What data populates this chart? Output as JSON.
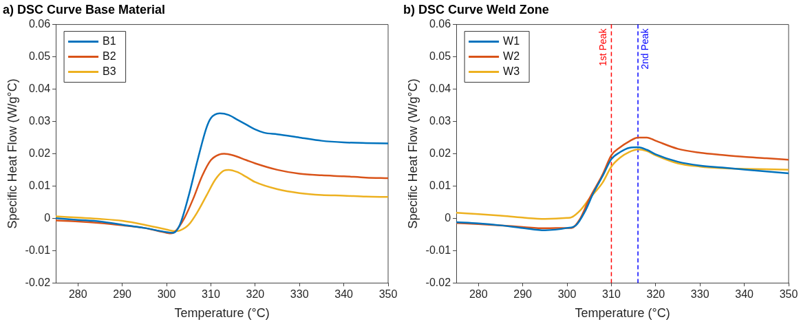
{
  "chart_data": [
    {
      "type": "line",
      "title": "a) DSC Curve Base Material",
      "xlabel": "Temperature (°C)",
      "ylabel": "Specific Heat Flow (W/g°C)",
      "xlim": [
        275,
        350
      ],
      "xticks": [
        280,
        290,
        300,
        310,
        320,
        330,
        340,
        350
      ],
      "ylim": [
        -0.02,
        0.06
      ],
      "yticks": [
        -0.02,
        -0.01,
        0,
        0.01,
        0.02,
        0.03,
        0.04,
        0.05,
        0.06
      ],
      "grid": false,
      "legend": "top left",
      "marker": "none",
      "series": [
        {
          "name": "B1",
          "color": "#0072bd",
          "x": [
            275,
            280,
            285,
            290,
            295,
            300,
            301.5,
            303,
            305,
            307,
            309,
            310,
            312,
            314,
            316,
            318,
            320,
            322,
            325,
            330,
            335,
            340,
            345,
            350
          ],
          "values": [
            0.0,
            -0.0005,
            -0.001,
            -0.002,
            -0.003,
            -0.0043,
            -0.0045,
            -0.002,
            0.007,
            0.018,
            0.028,
            0.031,
            0.0325,
            0.032,
            0.0305,
            0.029,
            0.0275,
            0.0265,
            0.026,
            0.025,
            0.024,
            0.0235,
            0.0233,
            0.0232
          ]
        },
        {
          "name": "B2",
          "color": "#d95319",
          "x": [
            275,
            280,
            285,
            290,
            295,
            300,
            301,
            302,
            304,
            306,
            308,
            310,
            312,
            313,
            315,
            318,
            320,
            325,
            330,
            335,
            340,
            345,
            350
          ],
          "values": [
            -0.0007,
            -0.001,
            -0.0015,
            -0.0022,
            -0.003,
            -0.0045,
            -0.0047,
            -0.004,
            0.0,
            0.006,
            0.013,
            0.018,
            0.0198,
            0.02,
            0.0195,
            0.018,
            0.017,
            0.015,
            0.0138,
            0.0133,
            0.013,
            0.0126,
            0.0124
          ]
        },
        {
          "name": "B3",
          "color": "#edb120",
          "x": [
            275,
            280,
            285,
            290,
            295,
            300,
            302,
            303,
            305,
            307,
            309,
            311,
            313,
            314,
            316,
            318,
            320,
            325,
            330,
            335,
            340,
            345,
            350
          ],
          "values": [
            0.0006,
            0.0002,
            -0.0002,
            -0.0008,
            -0.002,
            -0.0035,
            -0.004,
            -0.0038,
            -0.002,
            0.002,
            0.007,
            0.012,
            0.0148,
            0.015,
            0.0143,
            0.0128,
            0.0112,
            0.009,
            0.0078,
            0.0072,
            0.007,
            0.0067,
            0.0066
          ]
        }
      ]
    },
    {
      "type": "line",
      "title": "b) DSC Curve Weld Zone",
      "xlabel": "Temperature (°C)",
      "ylabel": "Specific Heat Flow (W/g°C)",
      "xlim": [
        275,
        350
      ],
      "xticks": [
        280,
        290,
        300,
        310,
        320,
        330,
        340,
        350
      ],
      "ylim": [
        -0.02,
        0.06
      ],
      "yticks": [
        -0.02,
        -0.01,
        0,
        0.01,
        0.02,
        0.03,
        0.04,
        0.05,
        0.06
      ],
      "grid": false,
      "legend": "top left",
      "marker": "none",
      "ref_lines": [
        {
          "axis": "x",
          "value": 310,
          "label": "1st Peak",
          "color": "#ff0000",
          "line_style": "dashed"
        },
        {
          "axis": "x",
          "value": 316,
          "label": "2nd Peak",
          "color": "#0000ff",
          "line_style": "dashed"
        }
      ],
      "series": [
        {
          "name": "W1",
          "color": "#0072bd",
          "x": [
            275,
            280,
            285,
            290,
            295,
            300,
            302,
            304,
            306,
            308,
            310,
            312,
            314,
            316,
            318,
            320,
            325,
            330,
            335,
            340,
            345,
            350
          ],
          "values": [
            -0.0012,
            -0.0016,
            -0.0022,
            -0.003,
            -0.0037,
            -0.003,
            -0.0022,
            0.002,
            0.008,
            0.013,
            0.0183,
            0.0205,
            0.0218,
            0.022,
            0.0212,
            0.0198,
            0.0175,
            0.0163,
            0.0157,
            0.0151,
            0.0145,
            0.0139
          ]
        },
        {
          "name": "W2",
          "color": "#d95319",
          "x": [
            275,
            280,
            285,
            290,
            295,
            300,
            301,
            303,
            305,
            308,
            310,
            312,
            314,
            316,
            318,
            320,
            325,
            330,
            335,
            340,
            345,
            350
          ],
          "values": [
            -0.0015,
            -0.0018,
            -0.0022,
            -0.0027,
            -0.0031,
            -0.003,
            -0.003,
            0.0,
            0.006,
            0.0135,
            0.0195,
            0.022,
            0.0238,
            0.025,
            0.025,
            0.024,
            0.0215,
            0.0203,
            0.0196,
            0.019,
            0.0186,
            0.0181
          ]
        },
        {
          "name": "W3",
          "color": "#edb120",
          "x": [
            275,
            280,
            285,
            290,
            295,
            300,
            301,
            303,
            305,
            308,
            310,
            312,
            314,
            316,
            318,
            320,
            325,
            330,
            335,
            340,
            345,
            350
          ],
          "values": [
            0.0017,
            0.0013,
            0.0008,
            0.0002,
            -0.0002,
            0.0001,
            0.0003,
            0.0025,
            0.006,
            0.011,
            0.016,
            0.0188,
            0.0205,
            0.0213,
            0.0208,
            0.0195,
            0.017,
            0.016,
            0.0155,
            0.0153,
            0.0152,
            0.015
          ]
        }
      ]
    }
  ]
}
